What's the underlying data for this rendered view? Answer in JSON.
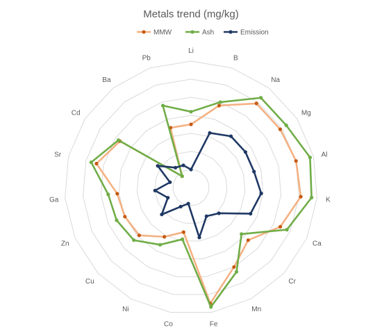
{
  "chart_data": {
    "type": "radar",
    "title": "Metals trend (mg/kg)",
    "categories": [
      "Li",
      "B",
      "Na",
      "Mg",
      "Al",
      "K",
      "Ca",
      "Cr",
      "Mn",
      "Fe",
      "Co",
      "Ni",
      "Cu",
      "Zn",
      "Ga",
      "Sr",
      "Cd",
      "Ba",
      "Pb"
    ],
    "rmax": 7,
    "rings": 7,
    "gridlines": true,
    "legend_position": "top",
    "series": [
      {
        "name": "MMW",
        "color": "#f4b183",
        "values": [
          3.5,
          4.8,
          5.9,
          5.9,
          6.0,
          6.1,
          5.4,
          4.3,
          5.0,
          6.5,
          2.5,
          3.1,
          3.9,
          4.0,
          4.1,
          5.4,
          4.7,
          0.8,
          3.5
        ]
      },
      {
        "name": "Ash",
        "color": "#70ad47",
        "values": [
          4.2,
          5.0,
          6.3,
          6.3,
          6.8,
          6.7,
          5.8,
          3.8,
          5.3,
          6.7,
          2.9,
          3.6,
          4.3,
          4.5,
          4.6,
          5.7,
          4.8,
          0.8,
          4.8
        ]
      },
      {
        "name": "Emission",
        "color": "#1f3864",
        "values": [
          1.0,
          3.2,
          3.6,
          3.6,
          3.6,
          3.9,
          3.6,
          2.1,
          1.8,
          2.8,
          0.9,
          1.2,
          2.2,
          1.4,
          2.0,
          1.2,
          2.2,
          1.4,
          1.3
        ]
      }
    ]
  }
}
